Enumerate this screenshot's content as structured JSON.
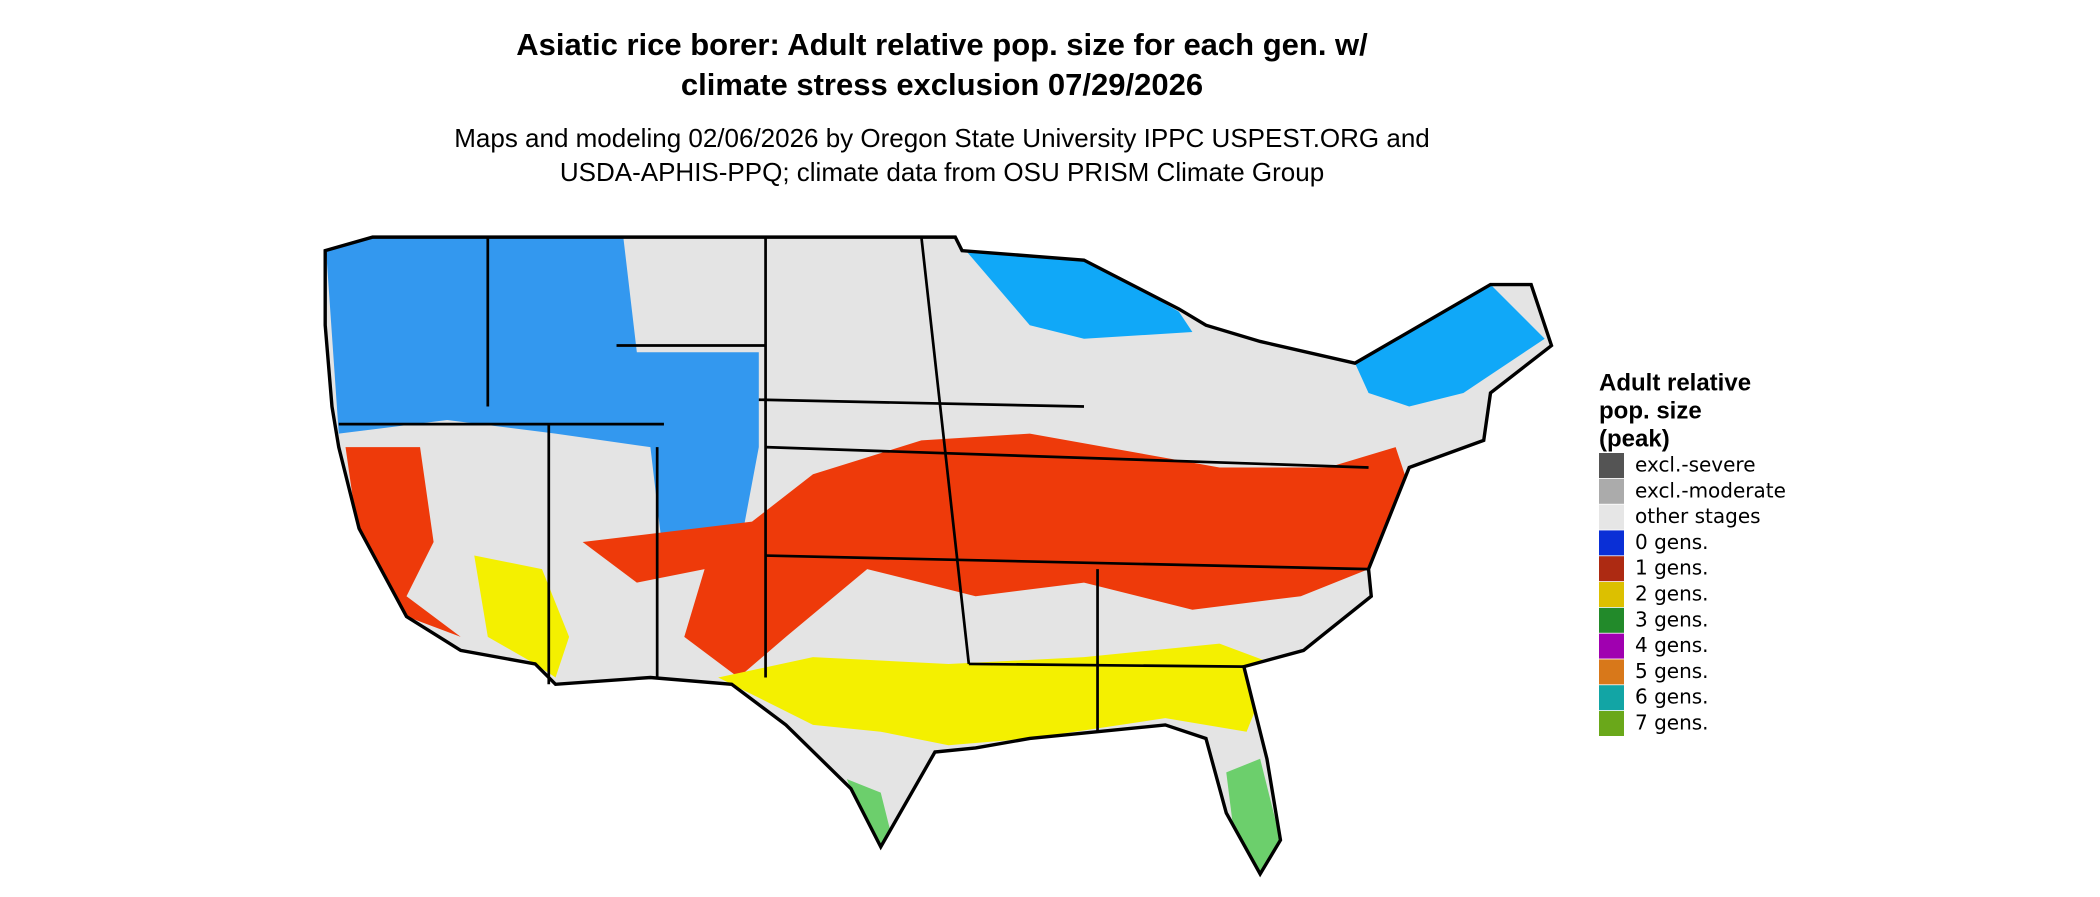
{
  "title": [
    "Asiatic rice borer: Adult relative pop. size for each gen. w/",
    "climate stress exclusion 07/29/2026"
  ],
  "subtitle": [
    "Maps and modeling 02/06/2026 by Oregon State University IPPC USPEST.ORG and",
    "USDA-APHIS-PPQ; climate data from OSU PRISM Climate Group"
  ],
  "legend": {
    "title": [
      "Adult relative",
      "pop. size",
      "(peak)"
    ],
    "items": [
      {
        "label": "excl.-severe",
        "color": "#545454"
      },
      {
        "label": "excl.-moderate",
        "color": "#ababab"
      },
      {
        "label": "other stages",
        "color": "#e6e6e6"
      },
      {
        "label": "0 gens.",
        "color": "#0a2fd6"
      },
      {
        "label": "1 gens.",
        "color": "#ad2a12"
      },
      {
        "label": "2 gens.",
        "color": "#dcc000"
      },
      {
        "label": "3 gens.",
        "color": "#228a2a"
      },
      {
        "label": "4 gens.",
        "color": "#a000b0"
      },
      {
        "label": "5 gens.",
        "color": "#d8781a"
      },
      {
        "label": "6 gens.",
        "color": "#12a5a5"
      },
      {
        "label": "7 gens.",
        "color": "#6aa81a"
      }
    ]
  }
}
